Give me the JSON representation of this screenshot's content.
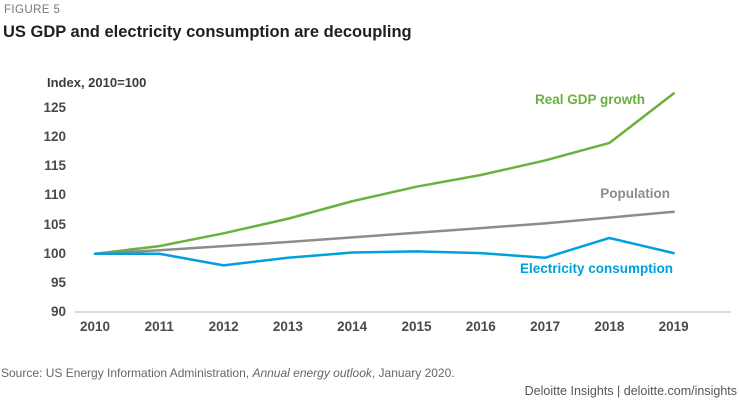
{
  "header": {
    "figure_label": "FIGURE 5",
    "title": "US GDP and electricity consumption are decoupling"
  },
  "chart_data": {
    "type": "line",
    "title": "US GDP and electricity consumption are decoupling",
    "ylabel": "Index, 2010=100",
    "xlabel": "",
    "x": [
      2010,
      2011,
      2012,
      2013,
      2014,
      2015,
      2016,
      2017,
      2018,
      2019
    ],
    "y_ticks": [
      90,
      95,
      100,
      105,
      110,
      115,
      120,
      125
    ],
    "ylim": [
      90,
      128
    ],
    "grid": false,
    "legend_position": "labels-at-line-end",
    "axis_line_color": "#b5b5b5",
    "series": [
      {
        "name": "Real GDP growth",
        "color": "#69b23e",
        "values": [
          100,
          101.3,
          103.5,
          106,
          109,
          111.5,
          113.5,
          116,
          119,
          127.5
        ]
      },
      {
        "name": "Population",
        "color": "#8c8c8c",
        "values": [
          100,
          100.6,
          101.3,
          102,
          102.8,
          103.6,
          104.4,
          105.2,
          106.2,
          107.2
        ]
      },
      {
        "name": "Electricity consumption",
        "color": "#00a0dc",
        "values": [
          100,
          100,
          98,
          99.3,
          100.2,
          100.4,
          100.1,
          99.3,
          102.7,
          100.1
        ]
      }
    ]
  },
  "footer": {
    "source_prefix": "Source: US Energy Information Administration, ",
    "source_italic": "Annual energy outlook",
    "source_suffix": ", January 2020.",
    "brand": "Deloitte Insights | deloitte.com/insights"
  }
}
